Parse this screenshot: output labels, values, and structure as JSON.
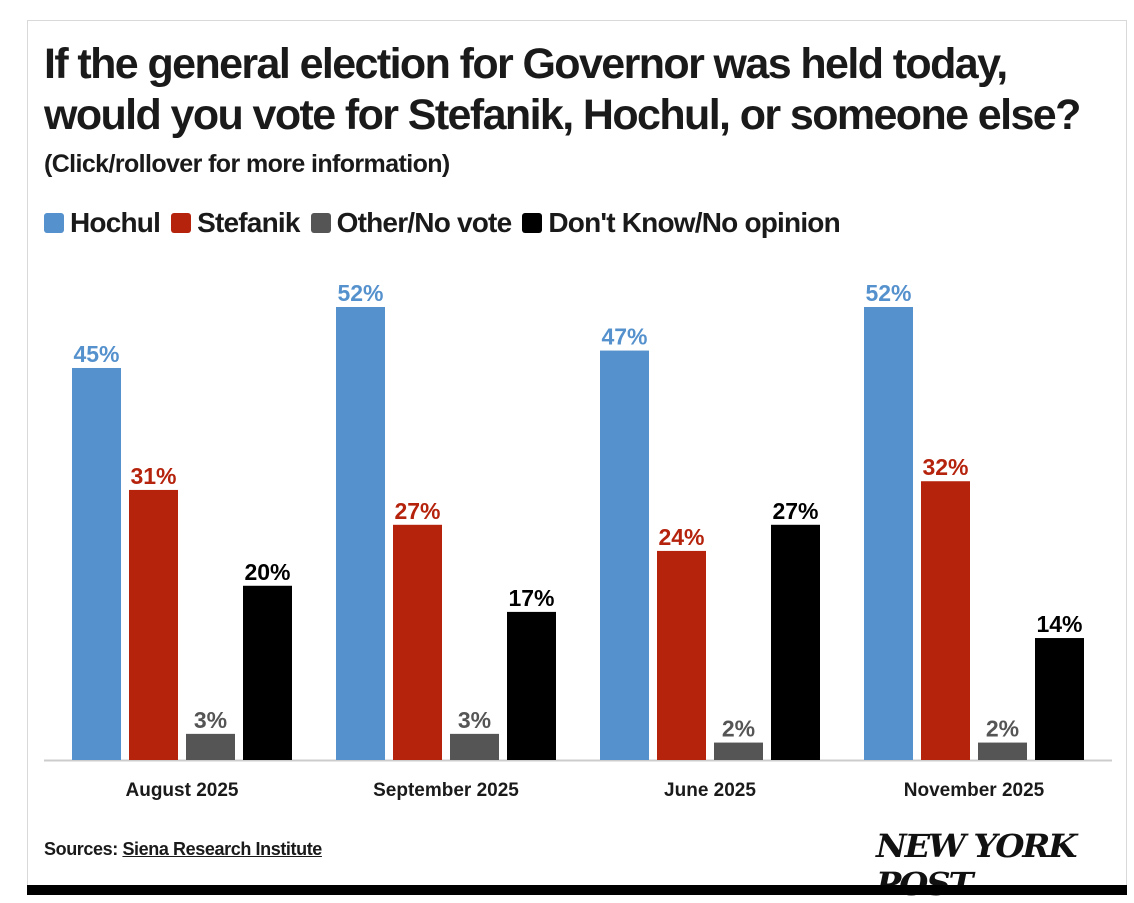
{
  "title": "If the general election for Governor was held today, would you vote for Stefanik, Hochul, or someone else?",
  "subtitle": "(Click/rollover for more information)",
  "legend": [
    {
      "label": "Hochul",
      "color": "#5591cd"
    },
    {
      "label": "Stefanik",
      "color": "#b5230d"
    },
    {
      "label": "Other/No vote",
      "color": "#555555"
    },
    {
      "label": "Don't Know/No opinion",
      "color": "#000000"
    }
  ],
  "sources": {
    "prefix": "Sources:",
    "link_text": "Siena Research Institute"
  },
  "logo_text": "NEW YORK POST",
  "chart_data": {
    "type": "bar",
    "title": "If the general election for Governor was held today, would you vote for Stefanik, Hochul, or someone else?",
    "xlabel": "",
    "ylabel": "",
    "ylim": [
      0,
      52
    ],
    "grid": false,
    "legend_position": "top-left",
    "categories": [
      "August 2025",
      "September 2025",
      "June 2025",
      "November 2025"
    ],
    "series": [
      {
        "name": "Hochul",
        "color": "#5591cd",
        "label_color": "#5591cd",
        "values": [
          45,
          52,
          47,
          52
        ]
      },
      {
        "name": "Stefanik",
        "color": "#b5230d",
        "label_color": "#b5230d",
        "values": [
          31,
          27,
          24,
          32
        ]
      },
      {
        "name": "Other/No vote",
        "color": "#555555",
        "label_color": "#555555",
        "values": [
          3,
          3,
          2,
          2
        ]
      },
      {
        "name": "Don't Know/No opinion",
        "color": "#000000",
        "label_color": "#000000",
        "values": [
          20,
          17,
          27,
          14
        ]
      }
    ],
    "value_suffix": "%"
  }
}
